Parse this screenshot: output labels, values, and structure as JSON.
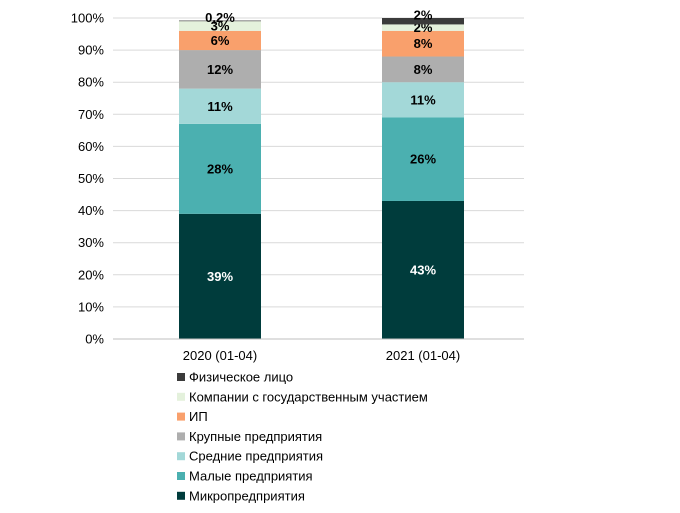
{
  "chart_data": {
    "type": "bar",
    "stacked": true,
    "categories": [
      "2020 (01-04)",
      "2021 (01-04)"
    ],
    "y_ticks": [
      "0%",
      "10%",
      "20%",
      "30%",
      "40%",
      "50%",
      "60%",
      "70%",
      "80%",
      "90%",
      "100%"
    ],
    "ylim": [
      0,
      100
    ],
    "grid": true,
    "legend_position": "bottom",
    "series": [
      {
        "name": "Микропредприятия",
        "color": "#003c3c",
        "label_color": "#ffffff",
        "values": [
          39,
          43
        ],
        "labels": [
          "39%",
          "43%"
        ]
      },
      {
        "name": "Малые предприятия",
        "color": "#4bb0b0",
        "label_color": "#000000",
        "values": [
          28,
          26
        ],
        "labels": [
          "28%",
          "26%"
        ]
      },
      {
        "name": "Средние предприятия",
        "color": "#a3d8d8",
        "label_color": "#000000",
        "values": [
          11,
          11
        ],
        "labels": [
          "11%",
          "11%"
        ]
      },
      {
        "name": "Крупные предприятия",
        "color": "#aeaeae",
        "label_color": "#000000",
        "values": [
          12,
          8
        ],
        "labels": [
          "12%",
          "8%"
        ]
      },
      {
        "name": "ИП",
        "color": "#f9a06c",
        "label_color": "#000000",
        "values": [
          6,
          8
        ],
        "labels": [
          "6%",
          "8%"
        ]
      },
      {
        "name": "Компании с государственным участием",
        "color": "#e4f1dc",
        "label_color": "#000000",
        "values": [
          3,
          2
        ],
        "labels": [
          "3%",
          "2%"
        ]
      },
      {
        "name": "Физическое лицо",
        "color": "#3b3b3b",
        "label_color": "#000000",
        "values": [
          0.2,
          2
        ],
        "labels": [
          "0,2%",
          "2%"
        ]
      }
    ]
  }
}
